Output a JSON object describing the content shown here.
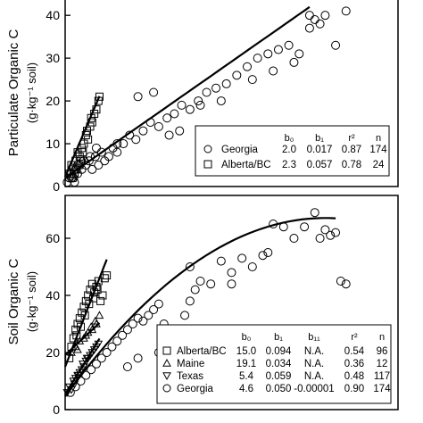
{
  "chart_data": [
    {
      "type": "scatter",
      "ylabel_line1": "Particulate Organic C",
      "ylabel_line2": "(g·kg⁻¹ soil)",
      "yticks": [
        0,
        10,
        20,
        30,
        40
      ],
      "ylim": [
        0,
        44
      ],
      "xlim": [
        0,
        3200
      ],
      "legend": {
        "placement": "bottom-right",
        "headers": [
          "b₀",
          "b₁",
          "r²",
          "n"
        ],
        "rows": [
          {
            "marker": "circle",
            "name": "Georgia",
            "b0": "2.0",
            "b1": "0.017",
            "r2": "0.87",
            "n": "174"
          },
          {
            "marker": "square",
            "name": "Alberta/BC",
            "b0": "2.3",
            "b1": "0.057",
            "r2": "0.78",
            "n": "24"
          }
        ]
      },
      "series": [
        {
          "name": "Georgia",
          "marker": "circle",
          "fit": "linear",
          "b0": 2.0,
          "b1": 0.017,
          "fit_range": [
            0,
            2350
          ],
          "x": [
            20,
            40,
            60,
            80,
            100,
            120,
            140,
            160,
            180,
            200,
            230,
            260,
            290,
            320,
            350,
            380,
            420,
            460,
            500,
            560,
            620,
            680,
            750,
            820,
            900,
            980,
            1050,
            1120,
            1200,
            1280,
            1360,
            1450,
            1550,
            1650,
            1750,
            1850,
            1950,
            2050,
            2150,
            2350,
            2350,
            2400,
            2450,
            2500,
            2600,
            2700,
            700,
            850,
            1000,
            1100,
            1300,
            1500,
            1800,
            2000,
            2200,
            2250,
            500,
            300,
            180,
            120,
            60,
            90,
            240
          ],
          "y": [
            1,
            2,
            3,
            2,
            4,
            3,
            5,
            4,
            6,
            5,
            6,
            4,
            7,
            5,
            8,
            6,
            7,
            9,
            8,
            10,
            12,
            11,
            13,
            15,
            14,
            16,
            17,
            19,
            18,
            20,
            22,
            23,
            24,
            26,
            28,
            30,
            31,
            32,
            33,
            37,
            40,
            39,
            38,
            40,
            33,
            41,
            21,
            22,
            12,
            13,
            19,
            20,
            25,
            27,
            29,
            31,
            10,
            9,
            6,
            5,
            2,
            1,
            7
          ]
        },
        {
          "name": "Alberta/BC",
          "marker": "square",
          "fit": "linear",
          "b0": 2.3,
          "b1": 0.057,
          "fit_range": [
            0,
            330
          ],
          "x": [
            40,
            60,
            80,
            100,
            120,
            140,
            160,
            180,
            200,
            220,
            240,
            260,
            280,
            300,
            320,
            330,
            150,
            110,
            70,
            90,
            130,
            170,
            210,
            250
          ],
          "y": [
            3,
            5,
            4,
            6,
            8,
            7,
            9,
            10,
            12,
            11,
            14,
            15,
            17,
            18,
            20,
            21,
            6,
            4,
            2,
            3,
            5,
            8,
            13,
            16
          ]
        }
      ]
    },
    {
      "type": "scatter",
      "ylabel_line1": "Soil Organic C",
      "ylabel_line2": "(g·kg⁻¹ soil)",
      "yticks": [
        0,
        20,
        40,
        60
      ],
      "ylim": [
        0,
        75
      ],
      "xlim": [
        0,
        3200
      ],
      "legend": {
        "placement": "bottom-right",
        "headers": [
          "b₀",
          "b₁",
          "b₁₁",
          "r²",
          "n"
        ],
        "rows": [
          {
            "marker": "square",
            "name": "Alberta/BC",
            "b0": "15.0",
            "b1": "0.094",
            "b11": "N.A.",
            "r2": "0.54",
            "n": "96"
          },
          {
            "marker": "triangle-up",
            "name": "Maine",
            "b0": "19.1",
            "b1": "0.034",
            "b11": "N.A.",
            "r2": "0.36",
            "n": "12"
          },
          {
            "marker": "triangle-down",
            "name": "Texas",
            "b0": "5.4",
            "b1": "0.059",
            "b11": "N.A.",
            "r2": "0.48",
            "n": "117"
          },
          {
            "marker": "circle",
            "name": "Georgia",
            "b0": "4.6",
            "b1": "0.050",
            "b11": "-0.00001",
            "r2": "0.90",
            "n": "174"
          }
        ]
      },
      "series": [
        {
          "name": "Georgia",
          "marker": "circle",
          "fit": "quadratic",
          "b0": 4.6,
          "b1": 0.05,
          "b11": -1e-05,
          "fit_range": [
            0,
            2600
          ],
          "x": [
            50,
            100,
            150,
            200,
            250,
            300,
            350,
            400,
            450,
            500,
            550,
            600,
            650,
            700,
            750,
            800,
            850,
            900,
            950,
            1000,
            1050,
            1100,
            1150,
            1200,
            1250,
            1300,
            1400,
            1500,
            1600,
            1700,
            1800,
            1900,
            2000,
            2100,
            2200,
            2300,
            2400,
            2500,
            2550,
            2600,
            2650,
            2700,
            1950,
            2450,
            1200,
            1600,
            900,
            700,
            600
          ],
          "y": [
            6,
            8,
            10,
            12,
            14,
            16,
            18,
            20,
            22,
            24,
            26,
            28,
            30,
            32,
            31,
            33,
            35,
            37,
            30,
            24,
            20,
            26,
            33,
            38,
            42,
            45,
            44,
            52,
            48,
            53,
            50,
            54,
            65,
            64,
            60,
            64,
            69,
            63,
            61,
            62,
            45,
            44,
            55,
            60,
            50,
            44,
            20,
            18,
            15
          ]
        },
        {
          "name": "Alberta/BC",
          "marker": "square",
          "fit": "linear",
          "b0": 15.0,
          "b1": 0.094,
          "fit_range": [
            0,
            400
          ],
          "x": [
            40,
            60,
            80,
            100,
            120,
            140,
            160,
            180,
            200,
            220,
            240,
            260,
            280,
            300,
            320,
            340,
            360,
            380,
            400,
            110,
            150,
            190,
            230,
            270,
            310
          ],
          "y": [
            18,
            22,
            25,
            28,
            30,
            32,
            34,
            36,
            38,
            40,
            42,
            44,
            41,
            43,
            45,
            38,
            40,
            46,
            47,
            26,
            29,
            33,
            37,
            39,
            42
          ]
        },
        {
          "name": "Maine",
          "marker": "triangle-up",
          "fit": "linear",
          "b0": 19.1,
          "b1": 0.034,
          "fit_range": [
            0,
            330
          ],
          "x": [
            60,
            100,
            140,
            180,
            220,
            260,
            300,
            330,
            120,
            200,
            250,
            290
          ],
          "y": [
            20,
            22,
            24,
            25,
            27,
            28,
            30,
            33,
            21,
            26,
            29,
            31
          ]
        },
        {
          "name": "Texas",
          "marker": "triangle-down",
          "fit": "linear",
          "b0": 5.4,
          "b1": 0.059,
          "fit_range": [
            0,
            330
          ],
          "x": [
            20,
            40,
            60,
            80,
            100,
            120,
            140,
            160,
            180,
            200,
            220,
            240,
            260,
            280,
            300,
            320,
            90,
            130,
            170,
            210
          ],
          "y": [
            6,
            8,
            7,
            10,
            11,
            12,
            13,
            14,
            15,
            17,
            18,
            19,
            20,
            21,
            22,
            23,
            9,
            12,
            16,
            18
          ]
        }
      ]
    }
  ]
}
